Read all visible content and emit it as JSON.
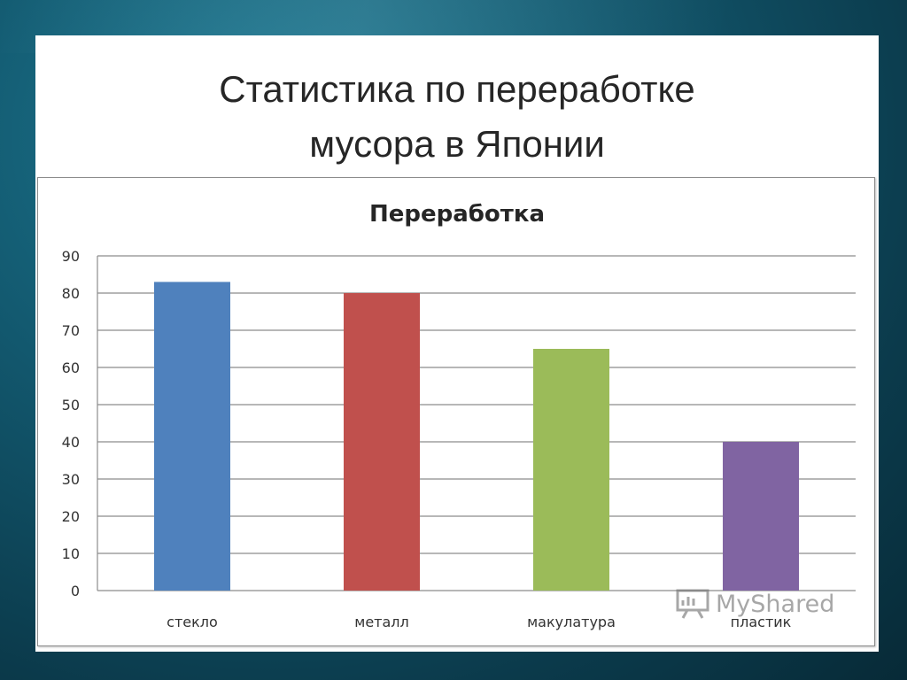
{
  "slide": {
    "title_lines": [
      "Статистика по переработке",
      "мусора в Японии"
    ]
  },
  "watermark": {
    "text": "MyShared",
    "icon": "presentation-board-icon"
  },
  "chart_data": {
    "type": "bar",
    "title": "Переработка",
    "categories": [
      "стекло",
      "металл",
      "макулатура",
      "пластик"
    ],
    "values": [
      83,
      80,
      65,
      40
    ],
    "colors": [
      "#4f81bd",
      "#c0504d",
      "#9bbb59",
      "#8064a2"
    ],
    "ylim": [
      0,
      90
    ],
    "yticks": [
      0,
      10,
      20,
      30,
      40,
      50,
      60,
      70,
      80,
      90
    ],
    "grid": true,
    "legend": "none"
  }
}
